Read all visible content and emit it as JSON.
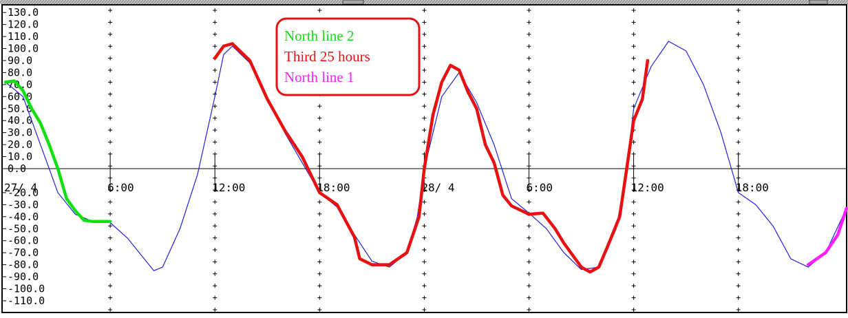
{
  "chart_data": {
    "type": "line",
    "title": "",
    "xlabel": "",
    "ylabel": "",
    "ylim": [
      -115,
      132
    ],
    "xlim_hours": [
      0,
      48.2
    ],
    "x_ticks": [
      {
        "hour": 0,
        "label": "27/ 4"
      },
      {
        "hour": 6,
        "label": "6:00"
      },
      {
        "hour": 12,
        "label": "12:00"
      },
      {
        "hour": 18,
        "label": "18:00"
      },
      {
        "hour": 24,
        "label": "28/ 4"
      },
      {
        "hour": 30,
        "label": "6:00"
      },
      {
        "hour": 36,
        "label": "12:00"
      },
      {
        "hour": 42,
        "label": "18:00"
      }
    ],
    "y_ticks": [
      {
        "value": 130,
        "label": "130.0"
      },
      {
        "value": 120,
        "label": "120.0"
      },
      {
        "value": 110,
        "label": "110.0"
      },
      {
        "value": 100,
        "label": "100.0"
      },
      {
        "value": 90,
        "label": "90.0"
      },
      {
        "value": 80,
        "label": "80.0"
      },
      {
        "value": 70,
        "label": "70.0"
      },
      {
        "value": 60,
        "label": "60.0"
      },
      {
        "value": 50,
        "label": "50.0"
      },
      {
        "value": 40,
        "label": "40.0"
      },
      {
        "value": 30,
        "label": "30.0"
      },
      {
        "value": 20,
        "label": "20.0"
      },
      {
        "value": 10,
        "label": "10.0"
      },
      {
        "value": 0,
        "label": "0.0"
      },
      {
        "value": -20,
        "label": "-20.0"
      },
      {
        "value": -30,
        "label": "-30.0"
      },
      {
        "value": -40,
        "label": "-40.0"
      },
      {
        "value": -50,
        "label": "-50.0"
      },
      {
        "value": -60,
        "label": "-60.0"
      },
      {
        "value": -70,
        "label": "-70.0"
      },
      {
        "value": -80,
        "label": "-80.0"
      },
      {
        "value": -90,
        "label": "-90.0"
      },
      {
        "value": -100,
        "label": "-100.0"
      },
      {
        "value": -110,
        "label": "-110.0"
      }
    ],
    "series": [
      {
        "id": "prediction",
        "color": "#2020e0",
        "points": [
          [
            0,
            72
          ],
          [
            1,
            60
          ],
          [
            2,
            20
          ],
          [
            3,
            -20
          ],
          [
            4,
            -38
          ],
          [
            5,
            -44
          ],
          [
            6,
            -45
          ],
          [
            7,
            -58
          ],
          [
            8,
            -76
          ],
          [
            8.5,
            -85
          ],
          [
            9,
            -82
          ],
          [
            10,
            -50
          ],
          [
            11,
            -5
          ],
          [
            12,
            60
          ],
          [
            12.5,
            95
          ],
          [
            13,
            102
          ],
          [
            14,
            88
          ],
          [
            15,
            60
          ],
          [
            16,
            30
          ],
          [
            17,
            5
          ],
          [
            18,
            -20
          ],
          [
            19,
            -32
          ],
          [
            20,
            -55
          ],
          [
            21,
            -77
          ],
          [
            22,
            -82
          ],
          [
            23,
            -70
          ],
          [
            23.6,
            -40
          ],
          [
            24,
            0
          ],
          [
            25,
            60
          ],
          [
            26,
            80
          ],
          [
            27,
            55
          ],
          [
            28,
            20
          ],
          [
            29,
            -25
          ],
          [
            30,
            -37
          ],
          [
            31,
            -50
          ],
          [
            32,
            -70
          ],
          [
            33,
            -84
          ],
          [
            34,
            -82
          ],
          [
            35,
            -50
          ],
          [
            35.6,
            0
          ],
          [
            36,
            50
          ],
          [
            37,
            85
          ],
          [
            38,
            106
          ],
          [
            39,
            98
          ],
          [
            40,
            70
          ],
          [
            41,
            30
          ],
          [
            42,
            -20
          ],
          [
            43,
            -30
          ],
          [
            44,
            -48
          ],
          [
            45,
            -75
          ],
          [
            46,
            -82
          ],
          [
            47,
            -70
          ],
          [
            48.2,
            -33
          ]
        ]
      },
      {
        "name": "North line 2",
        "color": "#10e010",
        "points": [
          [
            0,
            72
          ],
          [
            0.5,
            73
          ],
          [
            1,
            65
          ],
          [
            1.5,
            50
          ],
          [
            2,
            38
          ],
          [
            2.5,
            20
          ],
          [
            3,
            0
          ],
          [
            3.5,
            -25
          ],
          [
            4,
            -35
          ],
          [
            4.5,
            -43
          ],
          [
            5,
            -44
          ],
          [
            6,
            -44
          ]
        ]
      },
      {
        "name": "Third 25 hours",
        "color": "#e81010",
        "points": [
          [
            12,
            92
          ],
          [
            12.5,
            102
          ],
          [
            13,
            104
          ],
          [
            14,
            90
          ],
          [
            15,
            58
          ],
          [
            16,
            32
          ],
          [
            17,
            10
          ],
          [
            18,
            -20
          ],
          [
            19,
            -30
          ],
          [
            20,
            -57
          ],
          [
            20.3,
            -75
          ],
          [
            21,
            -80
          ],
          [
            22,
            -80
          ],
          [
            23,
            -70
          ],
          [
            23.7,
            -40
          ],
          [
            24,
            0
          ],
          [
            24.5,
            45
          ],
          [
            25,
            72
          ],
          [
            25.5,
            86
          ],
          [
            26,
            82
          ],
          [
            26.5,
            64
          ],
          [
            27,
            50
          ],
          [
            27.5,
            20
          ],
          [
            28,
            5
          ],
          [
            28.5,
            -22
          ],
          [
            29,
            -31
          ],
          [
            30,
            -38
          ],
          [
            30.8,
            -37
          ],
          [
            31.5,
            -50
          ],
          [
            32,
            -62
          ],
          [
            33,
            -82
          ],
          [
            33.5,
            -86
          ],
          [
            34,
            -82
          ],
          [
            34.5,
            -65
          ],
          [
            35.2,
            -40
          ],
          [
            35.6,
            0
          ],
          [
            36,
            40
          ],
          [
            36.5,
            58
          ],
          [
            36.8,
            90
          ]
        ]
      },
      {
        "name": "North line 1",
        "color": "#ff20ff",
        "points": [
          [
            46,
            -80
          ],
          [
            47,
            -70
          ],
          [
            47.7,
            -55
          ],
          [
            48.2,
            -33
          ]
        ]
      }
    ],
    "legend": {
      "position": "top-center",
      "border_color": "#e81010",
      "entries": [
        {
          "label": "North line 2",
          "color": "#10e010"
        },
        {
          "label": "Third 25 hours",
          "color": "#e81010"
        },
        {
          "label": "North line 1",
          "color": "#ff20ff"
        }
      ]
    }
  }
}
